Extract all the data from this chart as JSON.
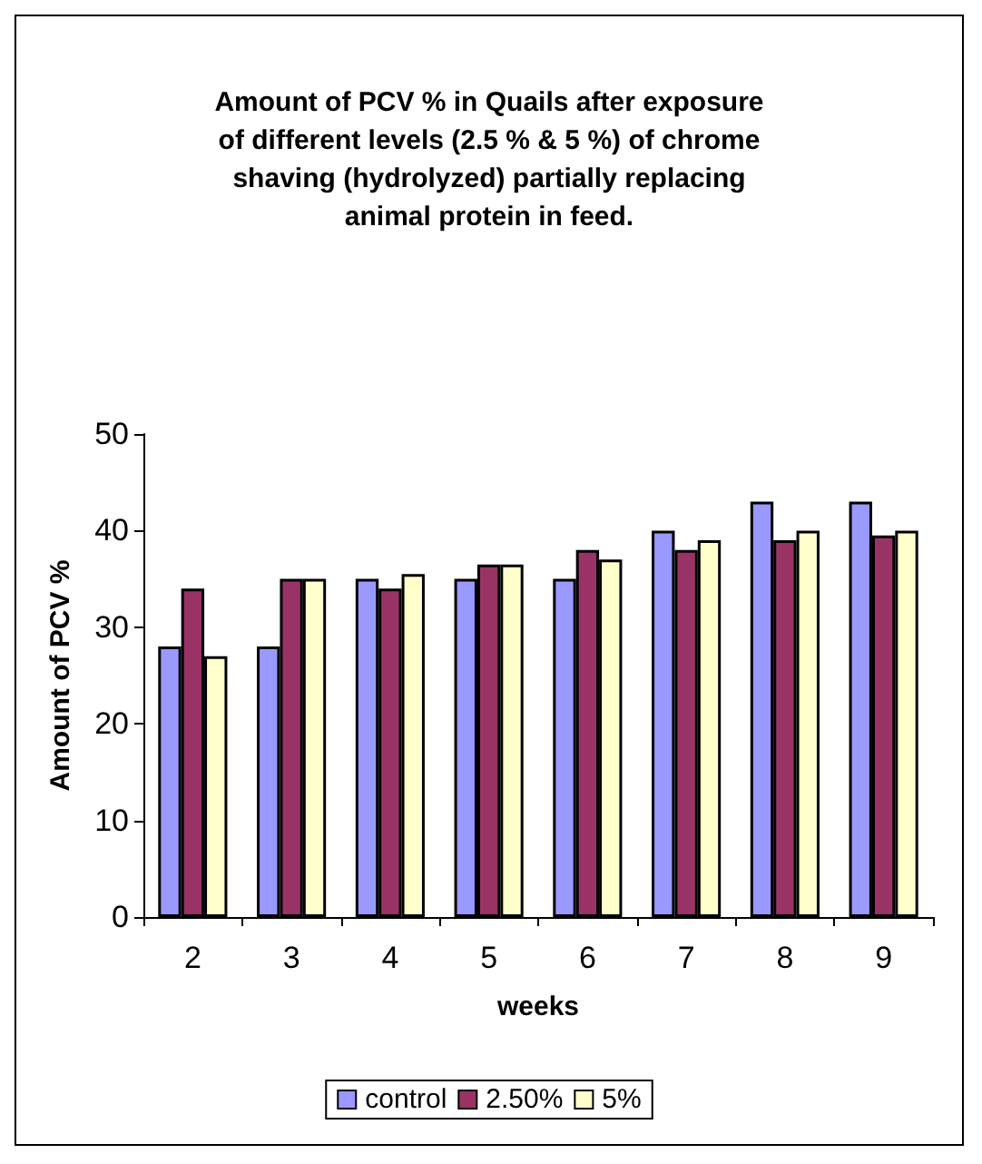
{
  "chart_data": {
    "type": "bar",
    "title": "Amount of PCV % in Quails after exposure\nof different levels (2.5 % & 5 %) of chrome\nshaving (hydrolyzed) partially replacing\nanimal protein in feed.",
    "xlabel": "weeks",
    "ylabel": "Amount of PCV %",
    "categories": [
      "2",
      "3",
      "4",
      "5",
      "6",
      "7",
      "8",
      "9"
    ],
    "series": [
      {
        "name": "control",
        "color": "#9999ff",
        "values": [
          28,
          28,
          35,
          35,
          35,
          40,
          43,
          43
        ]
      },
      {
        "name": "2.50%",
        "color": "#993366",
        "values": [
          34,
          35,
          34,
          36.5,
          38,
          38,
          39,
          39.5
        ]
      },
      {
        "name": "5%",
        "color": "#ffffcc",
        "values": [
          27,
          35,
          35.5,
          36.5,
          37,
          39,
          40,
          40
        ]
      }
    ],
    "ylim": [
      0,
      50
    ],
    "yticks": [
      0,
      10,
      20,
      30,
      40,
      50
    ],
    "grid": false,
    "legend": "bottom"
  }
}
